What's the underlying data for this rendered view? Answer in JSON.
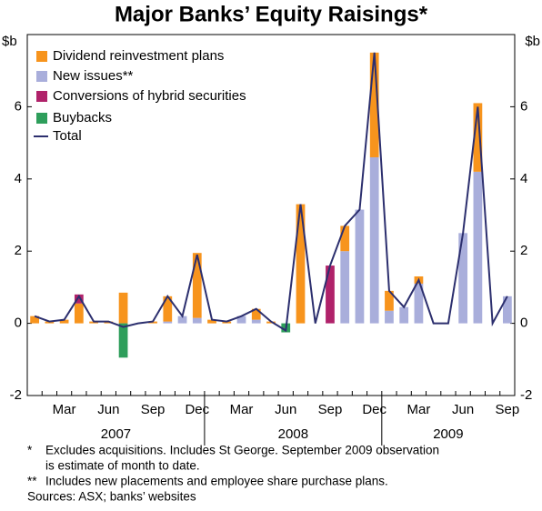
{
  "chart_data": {
    "type": "bar",
    "title": "Major Banks’ Equity Raisings*",
    "y_unit": "$b",
    "categories": [
      null,
      null,
      "Mar",
      null,
      null,
      "Jun",
      null,
      null,
      "Sep",
      null,
      null,
      "Dec",
      null,
      null,
      "Mar",
      null,
      null,
      "Jun",
      null,
      null,
      "Sep",
      null,
      null,
      "Dec",
      null,
      null,
      "Mar",
      null,
      null,
      "Jun",
      null,
      null,
      "Sep"
    ],
    "years": [
      "2007",
      "2008",
      "2009"
    ],
    "ylim": [
      -2,
      8
    ],
    "yticks": [
      -2,
      0,
      2,
      4,
      6
    ],
    "series": [
      {
        "name": "Dividend reinvestment plans",
        "color": "#f7941d",
        "values": [
          0.2,
          0.05,
          0.1,
          0.55,
          0.05,
          0.05,
          0.85,
          0,
          0.05,
          0.7,
          0,
          1.8,
          0.1,
          0.05,
          0,
          0.3,
          0.05,
          0,
          3.3,
          0,
          0,
          0.7,
          0,
          2.9,
          0.55,
          0,
          0.2,
          0,
          0,
          0,
          1.9,
          0,
          0
        ]
      },
      {
        "name": "New issues**",
        "color": "#a9aedb",
        "values": [
          0,
          0,
          0,
          0,
          0,
          0,
          0,
          0,
          0,
          0.05,
          0.2,
          0.15,
          0,
          0,
          0.2,
          0.1,
          0,
          0,
          0,
          0,
          0,
          2.0,
          3.15,
          4.6,
          0.35,
          0.45,
          1.1,
          0,
          0,
          2.5,
          4.2,
          0,
          0.75
        ]
      },
      {
        "name": "Conversions of hybrid securities",
        "color": "#b0226a",
        "values": [
          0,
          0,
          0,
          0.25,
          0,
          0,
          0,
          0,
          0,
          0,
          0,
          0,
          0,
          0,
          0,
          0,
          0,
          0,
          0,
          0,
          1.6,
          0,
          0,
          0,
          0,
          0,
          0,
          0,
          0,
          0,
          0,
          0,
          0
        ]
      },
      {
        "name": "Buybacks",
        "color": "#2e9e5b",
        "values": [
          0,
          0,
          0,
          0,
          0,
          0,
          -0.95,
          0,
          0,
          0,
          0,
          0,
          0,
          0,
          0,
          0,
          0,
          -0.25,
          0,
          0,
          0,
          0,
          0,
          0,
          0,
          0,
          0,
          0,
          0,
          0,
          0,
          0,
          0
        ]
      },
      {
        "name": "Total",
        "color": "#2c2f6e",
        "line": true,
        "values": [
          0.2,
          0.05,
          0.1,
          0.75,
          0.05,
          0.05,
          -0.1,
          0,
          0.05,
          0.75,
          0.2,
          1.9,
          0.1,
          0.05,
          0.2,
          0.4,
          0.05,
          -0.2,
          3.3,
          0,
          1.6,
          2.7,
          3.15,
          7.5,
          0.9,
          0.45,
          1.2,
          0,
          0,
          2.5,
          6.0,
          0,
          0.75
        ]
      }
    ],
    "notes": [
      {
        "marker": "*",
        "lines": [
          "Excludes acquisitions. Includes St George. September 2009 observation",
          "is estimate of month to date."
        ]
      },
      {
        "marker": "**",
        "lines": [
          "Includes new placements and employee share purchase plans."
        ]
      }
    ],
    "source": "Sources: ASX; banks’ websites"
  }
}
